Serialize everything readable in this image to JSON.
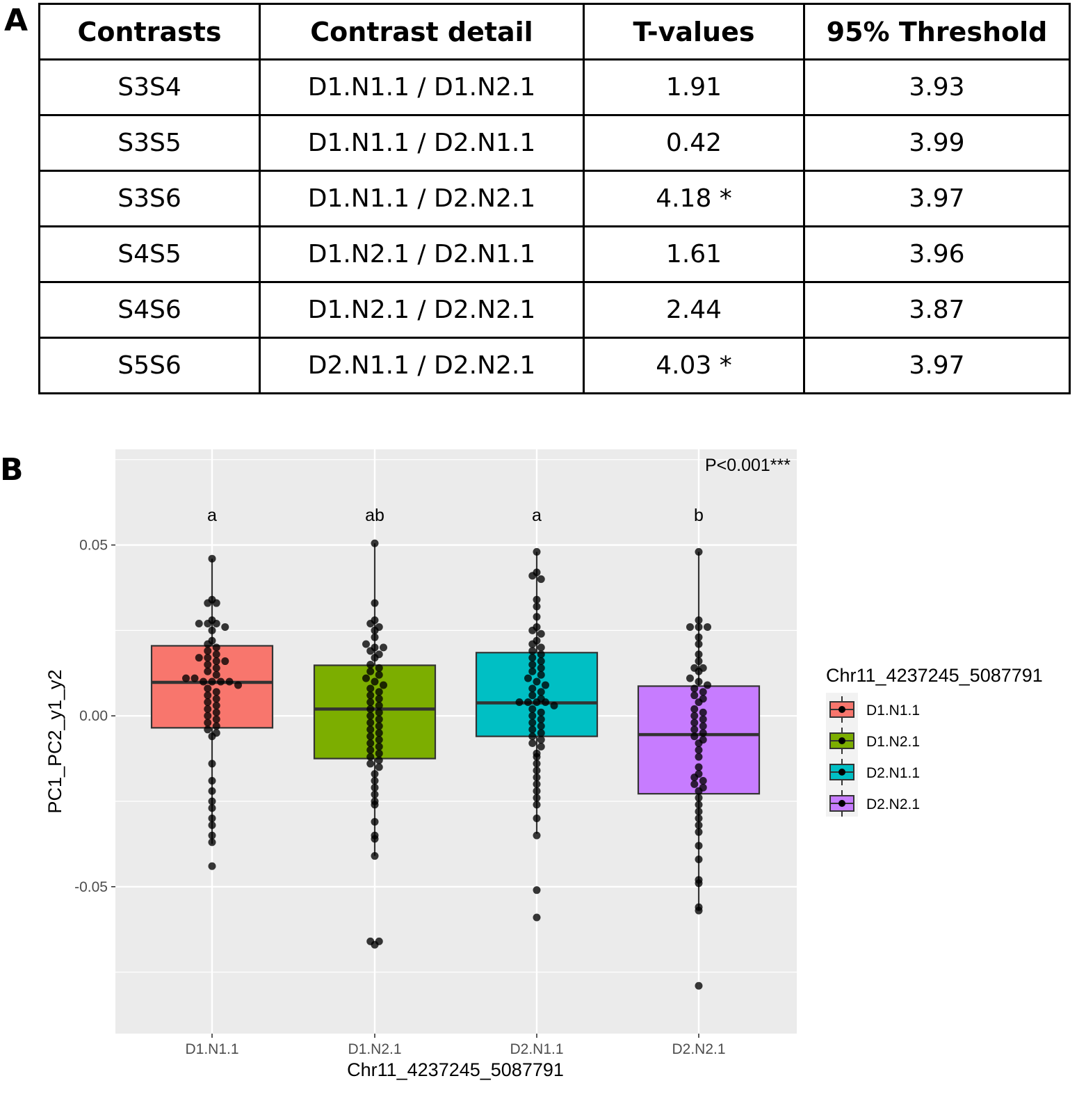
{
  "panel_a": {
    "label": "A",
    "headers": [
      "Contrasts",
      "Contrast detail",
      "T-values",
      "95% Threshold"
    ],
    "rows": [
      [
        "S3S4",
        "D1.N1.1 / D1.N2.1",
        "1.91",
        "3.93"
      ],
      [
        "S3S5",
        "D1.N1.1 / D2.N1.1",
        "0.42",
        "3.99"
      ],
      [
        "S3S6",
        "D1.N1.1 / D2.N2.1",
        "4.18 *",
        "3.97"
      ],
      [
        "S4S5",
        "D1.N2.1 / D2.N1.1",
        "1.61",
        "3.96"
      ],
      [
        "S4S6",
        "D1.N2.1 / D2.N2.1",
        "2.44",
        "3.87"
      ],
      [
        "S5S6",
        "D2.N1.1 / D2.N2.1",
        "4.03 *",
        "3.97"
      ]
    ]
  },
  "panel_b": {
    "label": "B",
    "pvalue_text": "P<0.001***"
  },
  "chart_data": {
    "type": "box",
    "xlabel": "Chr11_4237245_5087791",
    "ylabel": "PC1_PC2_y1_y2",
    "ylim": [
      -0.093,
      0.078
    ],
    "yticks": [
      0.05,
      0.0,
      -0.05
    ],
    "ytick_labels": [
      "0.05",
      "0.00",
      "-0.05"
    ],
    "categories": [
      "D1.N1.1",
      "D1.N2.1",
      "D2.N1.1",
      "D2.N2.1"
    ],
    "legend": {
      "title": "Chr11_4237245_5087791",
      "position": "right",
      "entries": [
        "D1.N1.1",
        "D1.N2.1",
        "D2.N1.1",
        "D2.N2.1"
      ]
    },
    "colors": [
      "#F8766D",
      "#7CAE00",
      "#00BFC4",
      "#C77CFF"
    ],
    "series": [
      {
        "name": "D1.N1.1",
        "box": {
          "q1": -0.0035,
          "median": 0.0098,
          "q3": 0.0205,
          "whisker_low": -0.0375,
          "whisker_high": 0.046
        },
        "letter": "a",
        "points": [
          0.046,
          0.034,
          0.033,
          0.033,
          0.028,
          0.027,
          0.027,
          0.027,
          0.026,
          0.025,
          0.022,
          0.021,
          0.02,
          0.019,
          0.018,
          0.017,
          0.017,
          0.016,
          0.016,
          0.015,
          0.014,
          0.013,
          0.012,
          0.011,
          0.011,
          0.01,
          0.01,
          0.01,
          0.01,
          0.009,
          0.008,
          0.007,
          0.006,
          0.005,
          0.004,
          0.003,
          0.002,
          0.001,
          0.0,
          -0.001,
          -0.002,
          -0.003,
          -0.004,
          -0.005,
          -0.006,
          -0.014,
          -0.019,
          -0.022,
          -0.025,
          -0.027,
          -0.03,
          -0.032,
          -0.035,
          -0.037,
          -0.044
        ]
      },
      {
        "name": "D1.N2.1",
        "box": {
          "q1": -0.0125,
          "median": 0.002,
          "q3": 0.0148,
          "whisker_low": -0.041,
          "whisker_high": 0.0505
        },
        "letter": "ab",
        "points": [
          0.0505,
          0.033,
          0.028,
          0.027,
          0.026,
          0.025,
          0.023,
          0.021,
          0.02,
          0.02,
          0.019,
          0.018,
          0.017,
          0.015,
          0.014,
          0.013,
          0.012,
          0.011,
          0.01,
          0.009,
          0.008,
          0.007,
          0.006,
          0.005,
          0.004,
          0.003,
          0.002,
          0.001,
          0.0,
          -0.001,
          -0.002,
          -0.003,
          -0.004,
          -0.005,
          -0.006,
          -0.007,
          -0.008,
          -0.009,
          -0.01,
          -0.011,
          -0.012,
          -0.013,
          -0.014,
          -0.015,
          -0.017,
          -0.019,
          -0.021,
          -0.023,
          -0.025,
          -0.026,
          -0.031,
          -0.035,
          -0.036,
          -0.041,
          -0.066,
          -0.066,
          -0.067
        ]
      },
      {
        "name": "D2.N1.1",
        "box": {
          "q1": -0.006,
          "median": 0.0038,
          "q3": 0.0185,
          "whisker_low": -0.0345,
          "whisker_high": 0.048
        },
        "letter": "a",
        "points": [
          0.048,
          0.042,
          0.041,
          0.04,
          0.034,
          0.032,
          0.029,
          0.026,
          0.025,
          0.024,
          0.022,
          0.021,
          0.02,
          0.019,
          0.018,
          0.017,
          0.016,
          0.015,
          0.014,
          0.013,
          0.012,
          0.011,
          0.01,
          0.009,
          0.008,
          0.007,
          0.006,
          0.005,
          0.004,
          0.004,
          0.004,
          0.004,
          0.003,
          0.002,
          0.001,
          0.0,
          -0.001,
          -0.002,
          -0.003,
          -0.004,
          -0.005,
          -0.006,
          -0.007,
          -0.008,
          -0.009,
          -0.011,
          -0.012,
          -0.014,
          -0.016,
          -0.018,
          -0.02,
          -0.022,
          -0.024,
          -0.026,
          -0.03,
          -0.035,
          -0.051,
          -0.059
        ]
      },
      {
        "name": "D2.N2.1",
        "box": {
          "q1": -0.0228,
          "median": -0.0055,
          "q3": 0.0087,
          "whisker_low": -0.057,
          "whisker_high": 0.048
        },
        "letter": "b",
        "points": [
          0.048,
          0.028,
          0.026,
          0.026,
          0.026,
          0.023,
          0.021,
          0.018,
          0.016,
          0.014,
          0.014,
          0.013,
          0.011,
          0.01,
          0.009,
          0.008,
          0.007,
          0.006,
          0.005,
          0.004,
          0.002,
          0.001,
          0.0,
          -0.001,
          -0.002,
          -0.003,
          -0.004,
          -0.005,
          -0.006,
          -0.007,
          -0.008,
          -0.01,
          -0.012,
          -0.015,
          -0.017,
          -0.018,
          -0.019,
          -0.02,
          -0.021,
          -0.022,
          -0.024,
          -0.026,
          -0.028,
          -0.03,
          -0.032,
          -0.034,
          -0.038,
          -0.042,
          -0.048,
          -0.049,
          -0.056,
          -0.057,
          -0.079
        ]
      }
    ]
  }
}
